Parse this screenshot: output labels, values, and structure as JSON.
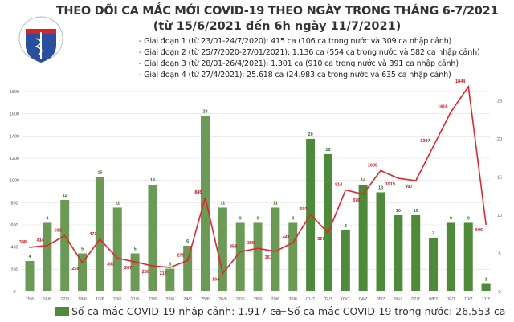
{
  "header": {
    "title": "THEO DÕI CA MẮC MỚI COVID-19 THEO NGÀY TRONG THÁNG 6-7/2021",
    "subtitle": "(từ 15/6/2021 đến 6h ngày 11/7/2021)",
    "notes": [
      "- Giai đoạn 1 (từ 23/01-24/7/2020): 415 ca (106 ca trong nước và 309 ca nhập cảnh)",
      "- Giai đoạn 2 (từ 25/7/2020-27/01/2021): 1.136 ca (554 ca trong nước và 582 ca nhập cảnh)",
      "- Giai đoạn 3 (từ 28/01-26/4/2021): 1.301 ca (910 ca trong nước và 391 ca nhập cảnh)",
      "- Giai đoạn 4 (từ 27/4/2021): 25.618 ca (24.983 ca trong nước và 635 ca nhập cảnh)"
    ],
    "logo_text": "BỘ Y TẾ"
  },
  "chart_data": {
    "type": "bar+line",
    "title": "THEO DÕI CA MẮC MỚI COVID-19 THEO NGÀY TRONG THÁNG 6-7/2021",
    "categories": [
      "15/6",
      "16/6",
      "17/6",
      "18/6",
      "19/6",
      "20/6",
      "21/6",
      "22/6",
      "23/6",
      "24/6",
      "25/6",
      "26/6",
      "27/6",
      "28/6",
      "29/6",
      "30/6",
      "01/7",
      "02/7",
      "03/7",
      "04/7",
      "05/7",
      "06/7",
      "07/7",
      "08/7",
      "09/7",
      "10/7",
      "11/7"
    ],
    "series": [
      {
        "name": "Số ca mắc COVID-19 nhập cảnh: 1.917 ca",
        "type": "bar",
        "axis": "right",
        "color": "#4e8a3a",
        "values": [
          4,
          9,
          12,
          5,
          15,
          11,
          5,
          14,
          3,
          6,
          23,
          11,
          9,
          9,
          11,
          9,
          20,
          18,
          8,
          14,
          13,
          10,
          10,
          7,
          9,
          9,
          1
        ]
      },
      {
        "name": "Số ca mắc COVID-19 trong nước: 26.553 ca",
        "type": "line",
        "axis": "left",
        "color": "#e0262b",
        "values": [
          398,
          414,
          503,
          259,
          471,
          300,
          267,
          230,
          217,
          279,
          845,
          164,
          359,
          389,
          361,
          441,
          693,
          527,
          914,
          876,
          1089,
          1019,
          997,
          1307,
          1616,
          1844,
          606
        ]
      }
    ],
    "left_axis": {
      "ticks": [
        0,
        200,
        400,
        600,
        800,
        1000,
        1200,
        1400,
        1600,
        1800
      ],
      "ylim": [
        0,
        1800
      ]
    },
    "right_axis": {
      "ticks": [
        0,
        5,
        10,
        15,
        20,
        25
      ]
    },
    "grid": true,
    "legend": "bottom"
  }
}
